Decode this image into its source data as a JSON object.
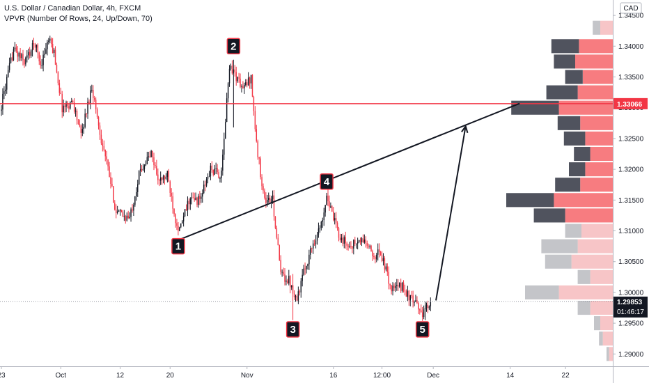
{
  "header": {
    "title": "U.S. Dollar / Canadian Dollar, 4h, FXCM",
    "indicator": "VPVR (Number Of Rows, 24, Up/Down, 70)"
  },
  "chart_data": {
    "type": "candlestick",
    "currency_badge": "CAD",
    "ylim": [
      1.288,
      1.3475
    ],
    "y_ticks": [
      "1.34500",
      "1.34000",
      "1.33500",
      "1.33000",
      "1.32500",
      "1.32000",
      "1.31500",
      "1.31000",
      "1.30500",
      "1.30000",
      "1.29500",
      "1.29000"
    ],
    "y_tick_values": [
      1.345,
      1.34,
      1.335,
      1.33,
      1.325,
      1.32,
      1.315,
      1.31,
      1.305,
      1.3,
      1.295,
      1.29
    ],
    "x_ticks": [
      "23",
      "Oct",
      "12",
      "20",
      "Nov",
      "16",
      "12:00",
      "Dec",
      "14",
      "22"
    ],
    "x_tick_index": [
      0,
      44,
      88,
      125,
      182,
      246,
      282,
      320,
      377,
      418
    ],
    "x_index_range": [
      0,
      452
    ],
    "horizontal_line": {
      "value": 1.33066,
      "label": "1.33066",
      "color": "#f23645"
    },
    "last_price": {
      "value": 1.29853,
      "label": "1.29853",
      "countdown": "01:46:17",
      "color": "#131722"
    },
    "candle_colors": {
      "up": "#131722",
      "down": "#f23645"
    },
    "waypoints": [
      {
        "i": 0,
        "p": 1.3295
      },
      {
        "i": 10,
        "p": 1.3395
      },
      {
        "i": 18,
        "p": 1.3375
      },
      {
        "i": 26,
        "p": 1.3405
      },
      {
        "i": 30,
        "p": 1.337
      },
      {
        "i": 36,
        "p": 1.341
      },
      {
        "i": 40,
        "p": 1.339
      },
      {
        "i": 46,
        "p": 1.33
      },
      {
        "i": 54,
        "p": 1.331
      },
      {
        "i": 60,
        "p": 1.3255
      },
      {
        "i": 68,
        "p": 1.3335
      },
      {
        "i": 74,
        "p": 1.326
      },
      {
        "i": 80,
        "p": 1.32
      },
      {
        "i": 86,
        "p": 1.313
      },
      {
        "i": 96,
        "p": 1.312
      },
      {
        "i": 104,
        "p": 1.32
      },
      {
        "i": 112,
        "p": 1.3225
      },
      {
        "i": 118,
        "p": 1.318
      },
      {
        "i": 124,
        "p": 1.319
      },
      {
        "i": 130,
        "p": 1.312
      },
      {
        "i": 133,
        "p": 1.31
      },
      {
        "i": 140,
        "p": 1.315
      },
      {
        "i": 148,
        "p": 1.315
      },
      {
        "i": 156,
        "p": 1.32
      },
      {
        "i": 164,
        "p": 1.319
      },
      {
        "i": 170,
        "p": 1.337
      },
      {
        "i": 174,
        "p": 1.3355
      },
      {
        "i": 180,
        "p": 1.333
      },
      {
        "i": 186,
        "p": 1.335
      },
      {
        "i": 190,
        "p": 1.324
      },
      {
        "i": 196,
        "p": 1.315
      },
      {
        "i": 202,
        "p": 1.315
      },
      {
        "i": 208,
        "p": 1.303
      },
      {
        "i": 214,
        "p": 1.302
      },
      {
        "i": 220,
        "p": 1.299
      },
      {
        "i": 226,
        "p": 1.304
      },
      {
        "i": 232,
        "p": 1.308
      },
      {
        "i": 238,
        "p": 1.311
      },
      {
        "i": 242,
        "p": 1.316
      },
      {
        "i": 246,
        "p": 1.3125
      },
      {
        "i": 252,
        "p": 1.309
      },
      {
        "i": 258,
        "p": 1.3075
      },
      {
        "i": 264,
        "p": 1.308
      },
      {
        "i": 270,
        "p": 1.3085
      },
      {
        "i": 276,
        "p": 1.306
      },
      {
        "i": 282,
        "p": 1.3065
      },
      {
        "i": 290,
        "p": 1.3005
      },
      {
        "i": 298,
        "p": 1.301
      },
      {
        "i": 304,
        "p": 1.299
      },
      {
        "i": 310,
        "p": 1.2975
      },
      {
        "i": 314,
        "p": 1.2965
      },
      {
        "i": 318,
        "p": 1.2985
      }
    ],
    "wick_spikes": [
      {
        "i": 172,
        "low": 1.3268,
        "high": 1.3378
      },
      {
        "i": 216,
        "low": 1.2955,
        "high": 1.303
      },
      {
        "i": 242,
        "low": 1.314,
        "high": 1.317
      },
      {
        "i": 314,
        "low": 1.2955,
        "high": 1.2985
      }
    ],
    "volume_profile": [
      {
        "p": 1.343,
        "up": 6,
        "down": 10,
        "active": false
      },
      {
        "p": 1.34,
        "up": 22,
        "down": 27,
        "active": true
      },
      {
        "p": 1.3375,
        "up": 17,
        "down": 30,
        "active": true
      },
      {
        "p": 1.335,
        "up": 14,
        "down": 24,
        "active": true
      },
      {
        "p": 1.3325,
        "up": 25,
        "down": 28,
        "active": true
      },
      {
        "p": 1.33,
        "up": 38,
        "down": 43,
        "active": true
      },
      {
        "p": 1.3275,
        "up": 18,
        "down": 26,
        "active": true
      },
      {
        "p": 1.325,
        "up": 17,
        "down": 22,
        "active": true
      },
      {
        "p": 1.3225,
        "up": 13,
        "down": 18,
        "active": true
      },
      {
        "p": 1.32,
        "up": 13,
        "down": 22,
        "active": true
      },
      {
        "p": 1.3175,
        "up": 20,
        "down": 26,
        "active": true
      },
      {
        "p": 1.315,
        "up": 38,
        "down": 47,
        "active": true
      },
      {
        "p": 1.3125,
        "up": 25,
        "down": 38,
        "active": true
      },
      {
        "p": 1.31,
        "up": 13,
        "down": 25,
        "active": false
      },
      {
        "p": 1.3075,
        "up": 29,
        "down": 28,
        "active": false
      },
      {
        "p": 1.305,
        "up": 21,
        "down": 33,
        "active": false
      },
      {
        "p": 1.3025,
        "up": 10,
        "down": 18,
        "active": false
      },
      {
        "p": 1.3,
        "up": 27,
        "down": 43,
        "active": false
      },
      {
        "p": 1.2975,
        "up": 10,
        "down": 18,
        "active": false
      },
      {
        "p": 1.295,
        "up": 5,
        "down": 10,
        "active": false
      },
      {
        "p": 1.2925,
        "up": 3,
        "down": 8,
        "active": false
      },
      {
        "p": 1.29,
        "up": 2,
        "down": 3,
        "active": false
      }
    ],
    "trendline": {
      "from": {
        "i": 131,
        "p": 1.3085
      },
      "to": {
        "i": 384,
        "p": 1.3307
      }
    },
    "projection_arrow": {
      "from": {
        "i": 322,
        "p": 1.2987
      },
      "to": {
        "i": 344,
        "p": 1.327
      }
    },
    "pattern_points": [
      {
        "label": "1",
        "i": 131,
        "p": 1.3075
      },
      {
        "label": "2",
        "i": 172,
        "p": 1.34
      },
      {
        "label": "3",
        "i": 216,
        "p": 1.294
      },
      {
        "label": "4",
        "i": 241,
        "p": 1.318
      },
      {
        "label": "5",
        "i": 312,
        "p": 1.294
      }
    ]
  }
}
